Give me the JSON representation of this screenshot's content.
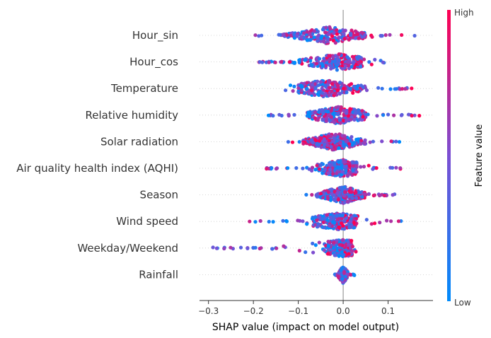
{
  "chart_data": {
    "type": "scatter",
    "subtype": "shap-beeswarm",
    "title": "",
    "xlabel": "SHAP value (impact on model output)",
    "ylabel": "",
    "xlim": [
      -0.32,
      0.2
    ],
    "xticks": [
      -0.3,
      -0.2,
      -0.1,
      0.0,
      0.1
    ],
    "xtick_labels": [
      "−0.3",
      "−0.2",
      "−0.1",
      "0.0",
      "0.1"
    ],
    "grid": false,
    "colorbar": {
      "title": "Feature value",
      "high_label": "High",
      "low_label": "Low",
      "low_color": "#008bfb",
      "high_color": "#ff0052"
    },
    "features": [
      {
        "name": "Hour_sin",
        "min": -0.2,
        "max": 0.16,
        "core": [
          -0.14,
          0.05
        ],
        "peak": -0.03,
        "bias": 0.5
      },
      {
        "name": "Hour_cos",
        "min": -0.195,
        "max": 0.1,
        "core": [
          -0.12,
          0.04
        ],
        "peak": -0.01,
        "bias": 0.3
      },
      {
        "name": "Temperature",
        "min": -0.13,
        "max": 0.165,
        "core": [
          -0.1,
          0.05
        ],
        "peak": -0.04,
        "bias": 0.65
      },
      {
        "name": "Relative humidity",
        "min": -0.18,
        "max": 0.175,
        "core": [
          -0.08,
          0.05
        ],
        "peak": -0.01,
        "bias": 0.45
      },
      {
        "name": "Solar radiation",
        "min": -0.16,
        "max": 0.13,
        "core": [
          -0.09,
          0.05
        ],
        "peak": -0.02,
        "bias": -0.5
      },
      {
        "name": "Air quality health index (AQHI)",
        "min": -0.175,
        "max": 0.135,
        "core": [
          -0.07,
          0.03
        ],
        "peak": 0.0,
        "bias": 0.4
      },
      {
        "name": "Season",
        "min": -0.11,
        "max": 0.12,
        "core": [
          -0.06,
          0.05
        ],
        "peak": 0.0,
        "bias": 0.2
      },
      {
        "name": "Wind speed",
        "min": -0.215,
        "max": 0.14,
        "core": [
          -0.07,
          0.03
        ],
        "peak": -0.01,
        "bias": 0.55
      },
      {
        "name": "Weekday/Weekend",
        "min": -0.29,
        "max": 0.035,
        "core": [
          -0.06,
          0.02
        ],
        "peak": 0.0,
        "bias": 0.5
      },
      {
        "name": "Rainfall",
        "min": -0.02,
        "max": 0.025,
        "core": [
          -0.01,
          0.01
        ],
        "peak": 0.0,
        "bias": -0.3
      }
    ]
  }
}
